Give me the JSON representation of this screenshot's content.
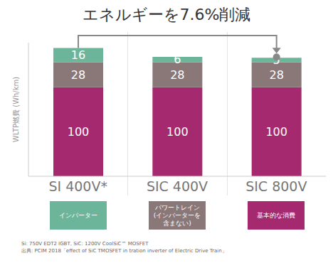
{
  "chart_data": {
    "type": "bar",
    "title": "エネルギーを7.6%削減",
    "y_label": "WLTP燃費 (Wh/km)",
    "categories": [
      "SI 400V*",
      "SIC 400V",
      "SIC 800V"
    ],
    "series": [
      {
        "name": "基本的な消費",
        "color": "#a5296f",
        "values": [
          100,
          100,
          100
        ]
      },
      {
        "name": "パワートレイン (インバーターを含まない)",
        "color": "#8a7778",
        "values": [
          28,
          28,
          28
        ]
      },
      {
        "name": "インバーター",
        "color": "#6db59a",
        "values": [
          16,
          6,
          5
        ]
      }
    ],
    "ylim": [
      0,
      150
    ],
    "stacked": true,
    "data_labels": true,
    "tick_labels": "x",
    "legend": "bottom",
    "footnotes": [
      "Si: 750V EDT2 IGBT, SiC: 1200V CoolSiC™ MOSFET",
      "出典: PCIM 2018「effect of SiC TMOSFET in tration inverter of Electric Drive Train」"
    ]
  }
}
